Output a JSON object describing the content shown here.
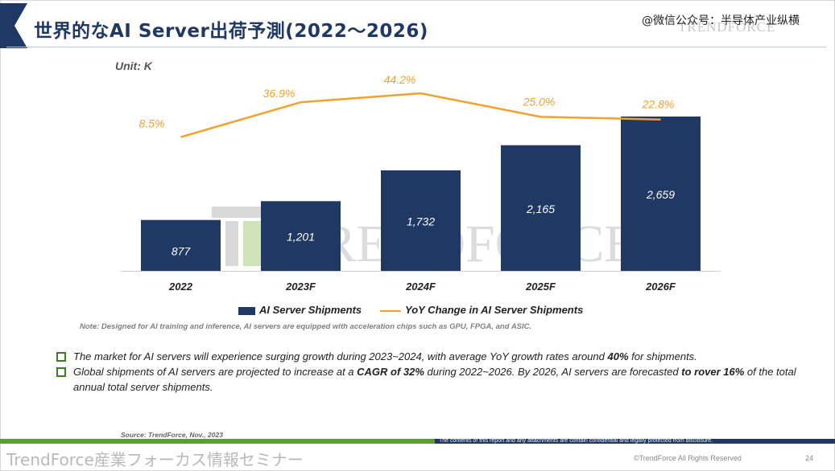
{
  "header": {
    "title": "世界的なAI Server出荷予測(2022～2026)",
    "social_watermark": "@微信公众号：半导体产业纵横",
    "brand_logo_text": "TRENDFORCE"
  },
  "chart_data": {
    "type": "bar",
    "unit_label": "Unit: K",
    "categories": [
      "2022",
      "2023F",
      "2024F",
      "2025F",
      "2026F"
    ],
    "series": [
      {
        "name": "AI Server Shipments",
        "kind": "bar",
        "values": [
          877,
          1201,
          1732,
          2165,
          2659
        ],
        "value_labels": [
          "877",
          "1,201",
          "1,732",
          "2,165",
          "2,659"
        ],
        "color": "#1f3864"
      },
      {
        "name": "YoY Change in AI Server Shipments",
        "kind": "line",
        "values": [
          8.5,
          36.9,
          44.2,
          25.0,
          22.8
        ],
        "value_labels": [
          "8.5%",
          "36.9%",
          "44.2%",
          "25.0%",
          "22.8%"
        ],
        "color": "#f2a22e"
      }
    ],
    "ylim": [
      0,
      2900
    ],
    "y2lim": [
      -100,
      60
    ],
    "grid": false,
    "legend": "bottom",
    "watermark": "TRENDFORCE"
  },
  "note": "Note: Designed for AI  training and inference, AI servers are equipped with acceleration chips such as GPU, FPGA, and ASIC.",
  "bullets": [
    {
      "parts": [
        {
          "t": "The market for AI servers will experience surging growth during 2023~2024, with average YoY growth rates around ",
          "b": false
        },
        {
          "t": "40%",
          "b": true
        },
        {
          "t": " for shipments.",
          "b": false
        }
      ]
    },
    {
      "parts": [
        {
          "t": "Global shipments of AI servers are projected to increase at a ",
          "b": false
        },
        {
          "t": "CAGR of 32%",
          "b": true
        },
        {
          "t": " during 2022~2026. By 2026, AI servers are forecasted ",
          "b": false
        },
        {
          "t": "to rover 16%",
          "b": true
        },
        {
          "t": " of the total annual total server shipments.",
          "b": false
        }
      ]
    }
  ],
  "source": "Source: TrendForce, Nov., 2023",
  "footer": {
    "disclaimer": "The contents of this report and any attachments are contain confidential and legally protected from disclosure.",
    "seminar": "TrendForce産業フォーカス情報セミナー",
    "copyright": "©TrendForce All Rights Reserved",
    "page": "24"
  },
  "colors": {
    "navy": "#1f3864",
    "orange": "#f2a22e",
    "green": "#5a9e2f"
  }
}
